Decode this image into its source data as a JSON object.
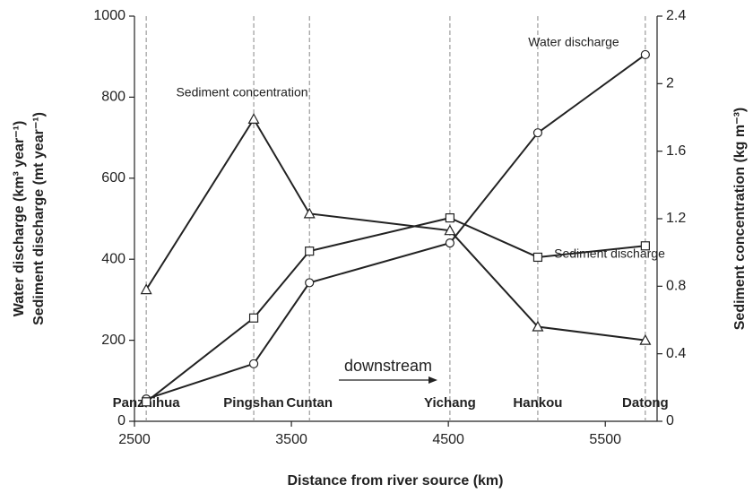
{
  "chart_data": {
    "type": "line",
    "x_label": "Distance from river source (km)",
    "y_label": [
      "Water discharge (km³ year⁻¹)",
      "Sediment discharge (mt year⁻¹)"
    ],
    "y2_label": "Sediment concentration (kg m⁻³)",
    "x": [
      2575,
      3260,
      3615,
      4510,
      5070,
      5755
    ],
    "station_names": [
      "Panzhihua",
      "Pingshan",
      "Cuntan",
      "Yichang",
      "Hankou",
      "Datong"
    ],
    "series": [
      {
        "name": "Water discharge",
        "color": "#222222",
        "marker": "circle",
        "values": [
          55,
          142,
          342,
          440,
          712,
          905
        ]
      },
      {
        "name": "Sediment discharge",
        "color": "#222222",
        "marker": "square",
        "values": [
          48,
          255,
          420,
          502,
          405,
          433
        ]
      },
      {
        "name": "Sediment concentration",
        "color": "#222222",
        "marker": "triangle",
        "axis": "y2",
        "values": [
          0.78,
          1.79,
          1.23,
          1.13,
          0.56,
          0.48
        ]
      }
    ],
    "annotations": [
      "downstream"
    ],
    "xlim": [
      2500,
      5830
    ],
    "xticks": [
      2500,
      3500,
      4500,
      5500
    ],
    "ylim": [
      0,
      1000
    ],
    "yticks": [
      0,
      200,
      400,
      600,
      800,
      1000
    ],
    "y2lim": [
      0,
      2.4
    ],
    "y2ticks": [
      0,
      0.4,
      0.8,
      1.2,
      1.6,
      2,
      2.4
    ]
  }
}
